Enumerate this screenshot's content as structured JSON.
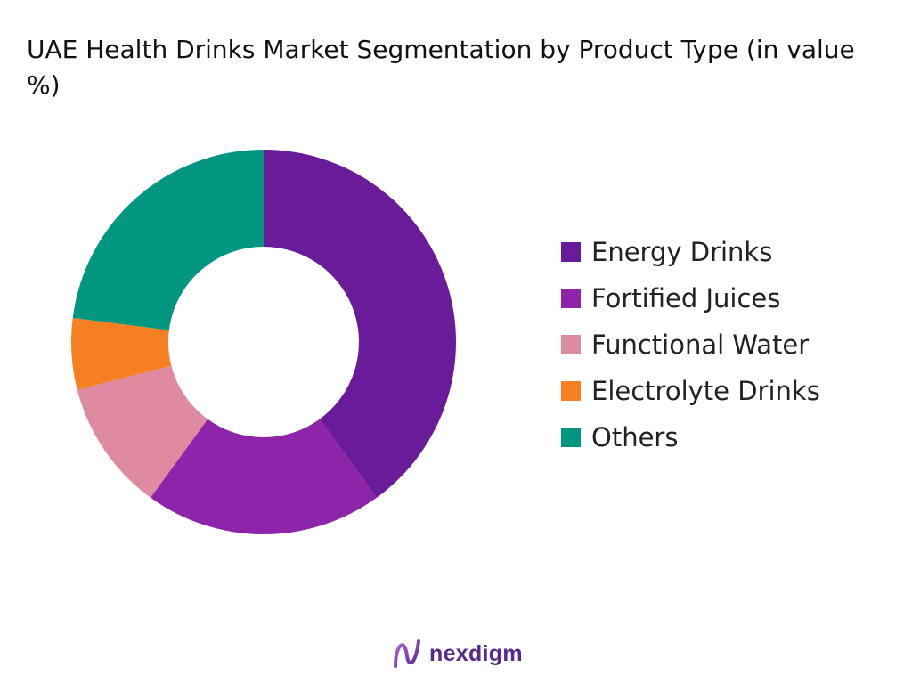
{
  "chart_data": {
    "type": "pie",
    "title": "UAE Health Drinks Market Segmentation by Product Type (in value %)",
    "categories": [
      "Energy Drinks",
      "Fortified Juices",
      "Functional Water",
      "Electrolyte Drinks",
      "Others"
    ],
    "values": [
      40,
      20,
      11,
      6,
      23
    ],
    "colors": [
      "#6a1b9a",
      "#8e24aa",
      "#de8aa0",
      "#f57f22",
      "#00967f"
    ],
    "legend_position": "right",
    "style": "donut"
  },
  "brand": {
    "name": "nexdigm",
    "icon": "nexdigm-logo-icon",
    "color": "#5a2a8a"
  }
}
